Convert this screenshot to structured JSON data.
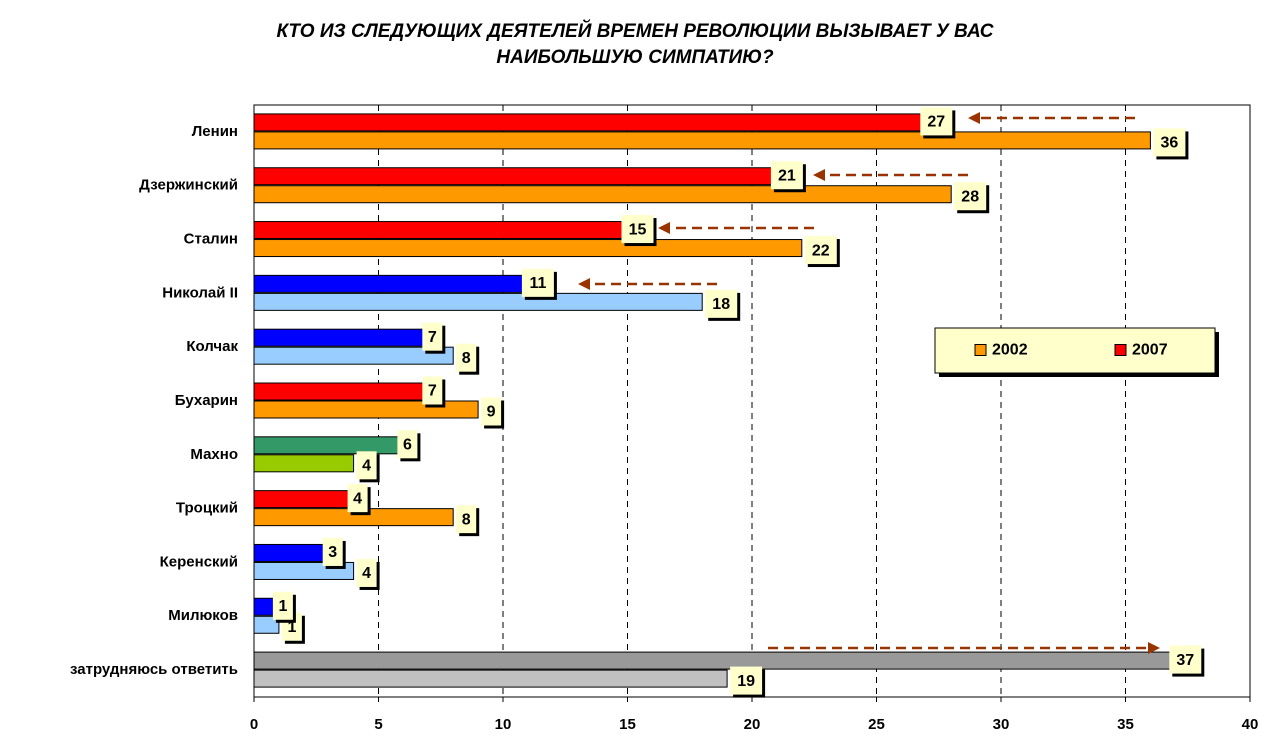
{
  "chart_data": {
    "type": "hbar",
    "title": [
      "КТО ИЗ СЛЕДУЮЩИХ ДЕЯТЕЛЕЙ ВРЕМЕН РЕВОЛЮЦИИ ВЫЗЫВАЕТ У ВАС",
      "НАИБОЛЬШУЮ СИМПАТИЮ?"
    ],
    "categories": [
      "Ленин",
      "Дзержинский",
      "Сталин",
      "Николай II",
      "Колчак",
      "Бухарин",
      "Махно",
      "Троцкий",
      "Керенский",
      "Милюков",
      "затрудняюсь ответить"
    ],
    "series": [
      {
        "name": "2002",
        "color": "#ff9900",
        "colors": [
          "#ff9900",
          "#ff9900",
          "#ff9900",
          "#99ccff",
          "#99ccff",
          "#ff9900",
          "#99cc00",
          "#ff9900",
          "#99ccff",
          "#99ccff",
          "#c0c0c0"
        ],
        "values": [
          36,
          28,
          22,
          18,
          8,
          9,
          4,
          8,
          4,
          1,
          19
        ]
      },
      {
        "name": "2007",
        "color": "#ff0000",
        "colors": [
          "#ff0000",
          "#ff0000",
          "#ff0000",
          "#0000ff",
          "#0000ff",
          "#ff0000",
          "#339966",
          "#ff0000",
          "#0000ff",
          "#0000ff",
          "#999999"
        ],
        "values": [
          27,
          21,
          15,
          11,
          7,
          7,
          6,
          4,
          3,
          1,
          37
        ]
      }
    ],
    "xlim": [
      0,
      40
    ],
    "xticks": [
      0,
      5,
      10,
      15,
      20,
      25,
      30,
      35,
      40
    ],
    "grid": true,
    "legend": "right"
  }
}
